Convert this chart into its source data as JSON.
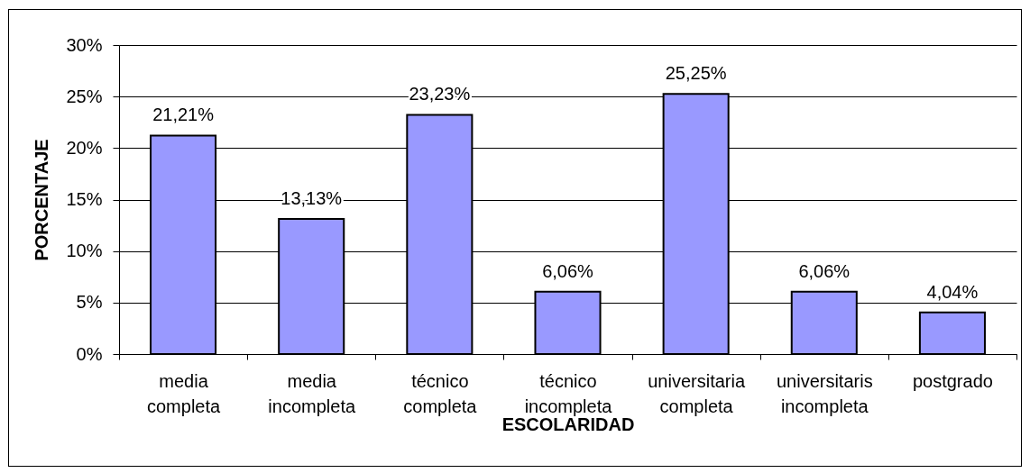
{
  "chart_data": {
    "type": "bar",
    "xlabel": "ESCOLARIDAD",
    "ylabel": "PORCENTAJE",
    "categories": [
      "media completa",
      "media incompleta",
      "técnico completa",
      "técnico incompleta",
      "universitaria completa",
      "universitaris incompleta",
      "postgrado"
    ],
    "values": [
      21.21,
      13.13,
      23.23,
      6.06,
      25.25,
      6.06,
      4.04
    ],
    "value_labels": [
      "21,21%",
      "13,13%",
      "23,23%",
      "6,06%",
      "25,25%",
      "6,06%",
      "4,04%"
    ],
    "color": "#9999ff",
    "ylim": [
      0,
      30
    ],
    "yticks": [
      {
        "value": 0,
        "label": "0%"
      },
      {
        "value": 5,
        "label": "5%"
      },
      {
        "value": 10,
        "label": "10%"
      },
      {
        "value": 15,
        "label": "15%"
      },
      {
        "value": 20,
        "label": "20%"
      },
      {
        "value": 25,
        "label": "25%"
      },
      {
        "value": 30,
        "label": "30%"
      }
    ],
    "grid": "y"
  }
}
